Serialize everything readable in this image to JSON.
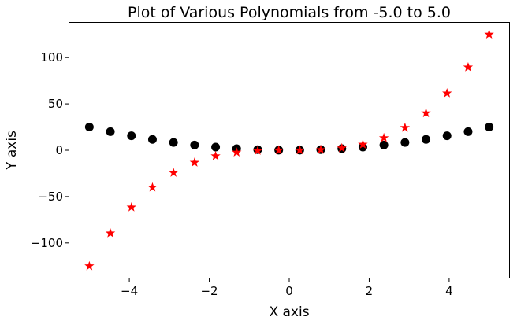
{
  "chart_data": {
    "type": "scatter",
    "title": "Plot of Various Polynomials from -5.0 to 5.0",
    "xlabel": "X axis",
    "ylabel": "Y axis",
    "xlim": [
      -5.5,
      5.5
    ],
    "ylim": [
      -137.5,
      137.5
    ],
    "xticks": [
      -4,
      -2,
      0,
      2,
      4
    ],
    "xtick_labels": [
      "−4",
      "−2",
      "0",
      "2",
      "4"
    ],
    "yticks": [
      -100,
      -50,
      0,
      50,
      100
    ],
    "ytick_labels": [
      "−100",
      "−50",
      "0",
      "50",
      "100"
    ],
    "grid": false,
    "legend": "none",
    "x": [
      -5.0,
      -4.474,
      -3.947,
      -3.421,
      -2.895,
      -2.368,
      -1.842,
      -1.316,
      -0.789,
      -0.263,
      0.263,
      0.789,
      1.316,
      1.842,
      2.368,
      2.895,
      3.421,
      3.947,
      4.474,
      5.0
    ],
    "series": [
      {
        "marker": "circle",
        "color": "#000000",
        "values": [
          25.0,
          20.02,
          15.58,
          11.7,
          8.38,
          5.61,
          3.39,
          1.73,
          0.62,
          0.07,
          0.07,
          0.62,
          1.73,
          3.39,
          5.61,
          8.38,
          11.7,
          15.58,
          20.02,
          25.0
        ]
      },
      {
        "marker": "star",
        "color": "#ff0000",
        "values": [
          -125.0,
          -89.55,
          -61.5,
          -40.05,
          -24.26,
          -13.28,
          -6.25,
          -2.28,
          -0.49,
          -0.02,
          0.02,
          0.49,
          2.28,
          6.25,
          13.28,
          24.26,
          40.05,
          61.5,
          89.55,
          125.0
        ]
      }
    ]
  }
}
